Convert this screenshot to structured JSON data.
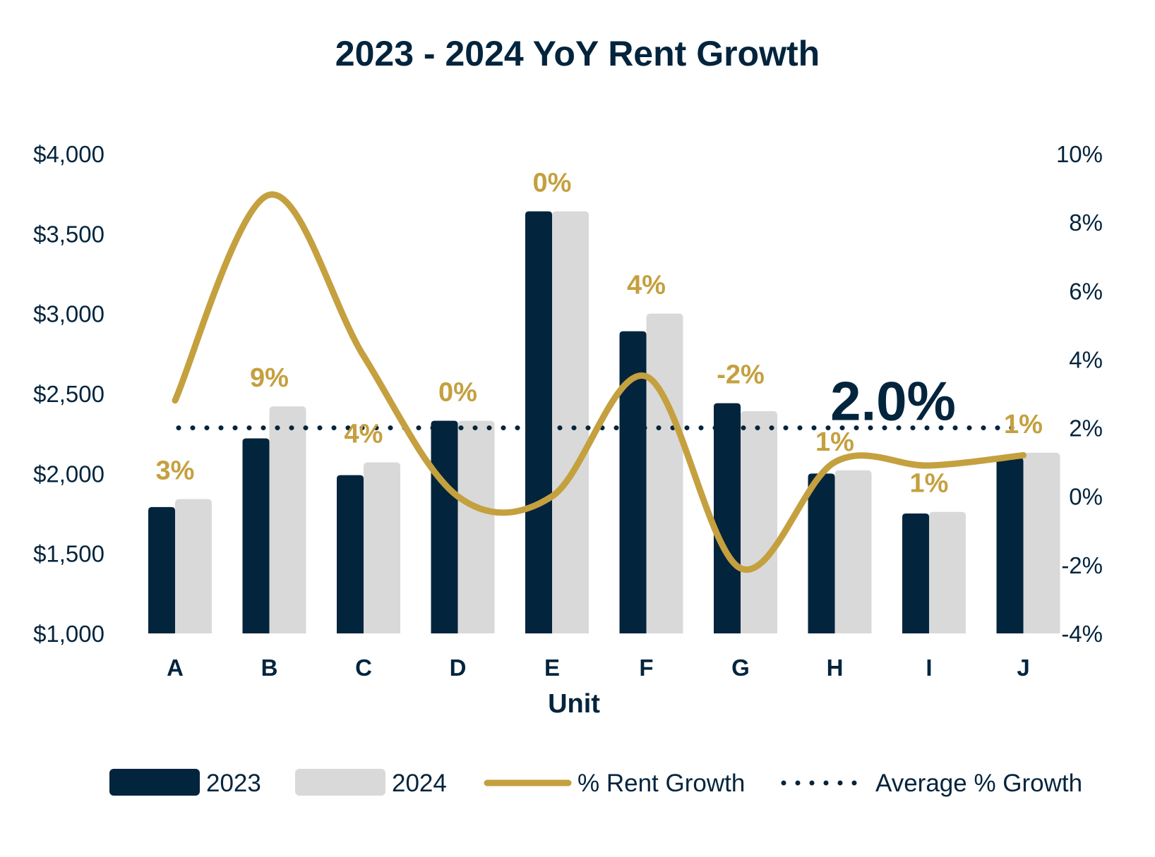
{
  "chart_data": {
    "type": "bar",
    "title": "2023 - 2024 YoY Rent Growth",
    "xlabel": "Unit",
    "ylabel": "",
    "y2label": "",
    "categories": [
      "A",
      "B",
      "C",
      "D",
      "E",
      "F",
      "G",
      "H",
      "I",
      "J"
    ],
    "ylim": [
      1000,
      4000
    ],
    "yticks": [
      1000,
      1500,
      2000,
      2500,
      3000,
      3500,
      4000
    ],
    "ytick_labels": [
      "$1,000",
      "$1,500",
      "$2,000",
      "$2,500",
      "$3,000",
      "$3,500",
      "$4,000"
    ],
    "y2lim": [
      -4,
      10
    ],
    "y2ticks": [
      -4,
      -2,
      0,
      2,
      4,
      6,
      8,
      10
    ],
    "y2tick_labels": [
      "-4%",
      "-2%",
      "0%",
      "2%",
      "4%",
      "6%",
      "8%",
      "10%"
    ],
    "series": [
      {
        "name": "2023",
        "type": "bar",
        "color": "#03243d",
        "values": [
          1790,
          2220,
          1990,
          2330,
          3640,
          2890,
          2440,
          2000,
          1750,
          2100
        ]
      },
      {
        "name": "2024",
        "type": "bar",
        "color": "#d9d9d9",
        "values": [
          1840,
          2420,
          2070,
          2330,
          3640,
          3000,
          2390,
          2020,
          1760,
          2130
        ]
      },
      {
        "name": "% Rent Growth",
        "type": "line",
        "axis": "y2",
        "color": "#c4a03f",
        "values": [
          2.8,
          8.8,
          4.1,
          0.0,
          0.0,
          3.5,
          -2.1,
          1.0,
          0.9,
          1.2
        ],
        "labels": [
          "3%",
          "9%",
          "4%",
          "0%",
          "0%",
          "4%",
          "-2%",
          "1%",
          "1%",
          "1%"
        ]
      },
      {
        "name": "Average % Growth",
        "type": "line",
        "axis": "y2",
        "color": "#03243d",
        "style": "dotted",
        "value": 2.0,
        "label": "2.0%"
      }
    ],
    "legend_position": "bottom",
    "grid": false
  }
}
